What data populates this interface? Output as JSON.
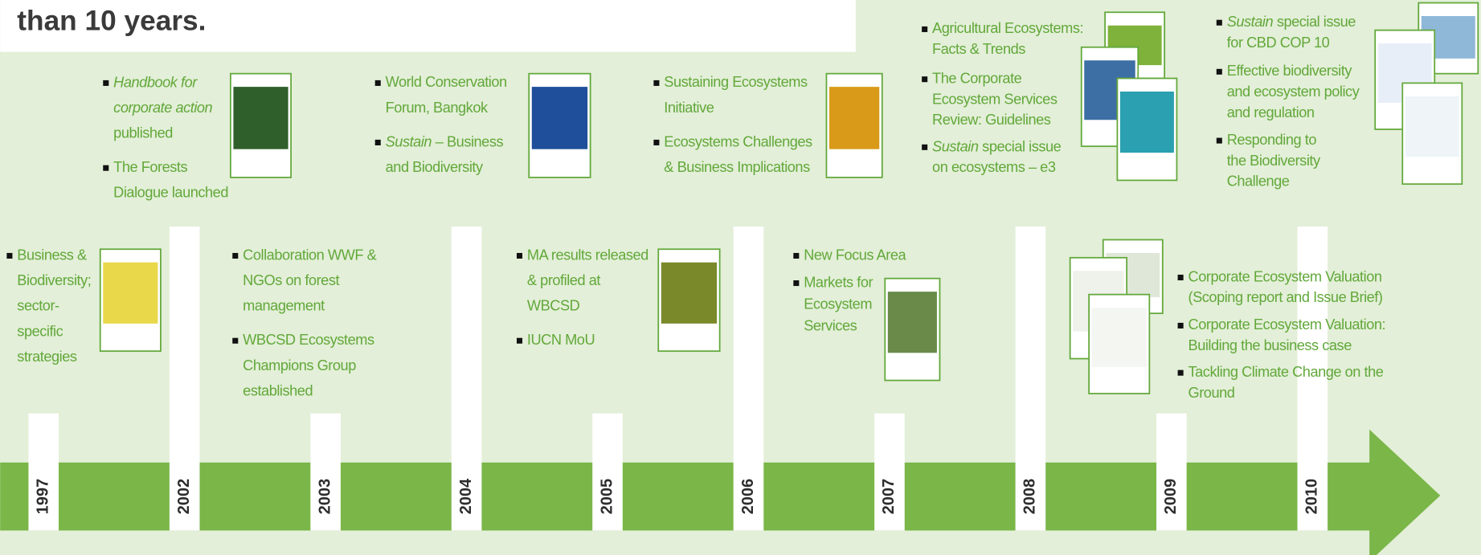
{
  "header": {
    "title": "than 10 years."
  },
  "years": [
    "1997",
    "2002",
    "2003",
    "2004",
    "2005",
    "2006",
    "2007",
    "2008",
    "2009",
    "2010"
  ],
  "events": [
    {
      "items": [
        {
          "lines": [
            {
              "em": "Handbook for"
            },
            {
              "em": "corporate action"
            },
            "published"
          ]
        },
        {
          "lines": [
            "The Forests",
            "Dialogue launched"
          ]
        }
      ]
    },
    {
      "items": [
        {
          "lines": [
            "World Conservation",
            "Forum, Bangkok"
          ]
        },
        {
          "lines": [
            {
              "em": "Sustain",
              "text": "– Business"
            },
            "and Biodiversity"
          ]
        }
      ]
    },
    {
      "items": [
        {
          "lines": [
            "Sustaining Ecosystems",
            "Initiative"
          ]
        },
        {
          "lines": [
            "Ecosystems Challenges",
            "& Business Implications"
          ]
        }
      ]
    },
    {
      "items": [
        {
          "lines": [
            "Agricultural Ecosystems:",
            "Facts & Trends"
          ]
        },
        {
          "lines": [
            "The Corporate",
            "Ecosystem Services",
            "Review: Guidelines"
          ]
        },
        {
          "lines": [
            {
              "em": "Sustain",
              "text": "special issue"
            },
            "on ecosystems – e3"
          ]
        }
      ]
    },
    {
      "items": [
        {
          "lines": [
            {
              "em": "Sustain",
              "text": "special issue"
            },
            "for CBD COP 10"
          ]
        },
        {
          "lines": [
            "Effective biodiversity",
            "and ecosystem policy",
            "and regulation"
          ]
        },
        {
          "lines": [
            "Responding to",
            "the Biodiversity",
            "Challenge"
          ]
        }
      ]
    },
    {
      "items": [
        {
          "lines": [
            "Business &",
            "Biodiversity;",
            "sector-",
            "specific",
            "strategies"
          ]
        }
      ]
    },
    {
      "items": [
        {
          "lines": [
            "Collaboration WWF &",
            "NGOs on forest",
            "management"
          ]
        },
        {
          "lines": [
            "WBCSD Ecosystems",
            "Champions Group",
            "established"
          ]
        }
      ]
    },
    {
      "items": [
        {
          "lines": [
            "MA results released",
            "& profiled at",
            "WBCSD"
          ]
        },
        {
          "lines": [
            "IUCN MoU"
          ]
        }
      ]
    },
    {
      "items": [
        {
          "lines": [
            "New Focus Area"
          ]
        },
        {
          "lines": [
            "Markets for",
            "Ecosystem",
            "Services"
          ]
        }
      ]
    },
    {
      "items": [
        {
          "lines": [
            "Corporate Ecosystem Valuation",
            "(Scoping report and Issue Brief)"
          ]
        },
        {
          "lines": [
            "Corporate Ecosystem Valuation:",
            "Building the business case"
          ]
        },
        {
          "lines": [
            "Tackling Climate Change on the",
            "Ground"
          ]
        }
      ]
    }
  ]
}
